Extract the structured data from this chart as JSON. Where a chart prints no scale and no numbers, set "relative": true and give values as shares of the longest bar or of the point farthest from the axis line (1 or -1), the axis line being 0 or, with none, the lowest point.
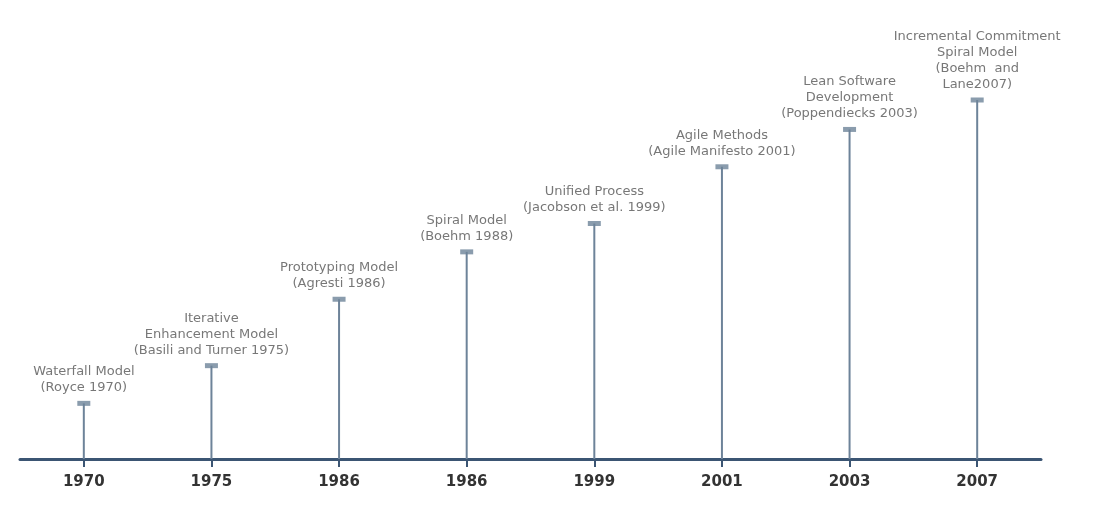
{
  "chart_data": {
    "type": "lollipop",
    "relative": true,
    "categories": [
      "1970",
      "1975",
      "1986",
      "1986",
      "1999",
      "2001",
      "2003",
      "2007"
    ],
    "values": [
      0.155,
      0.26,
      0.445,
      0.577,
      0.656,
      0.814,
      0.918,
      1
    ],
    "color": "#6d8399",
    "annotations": [
      "Waterfall Model\n(Royce 1970)",
      "Iterative\nEnhancement Model\n(Basili and Turner 1975)",
      "Prototyping Model\n(Agresti 1986)",
      "Spiral Model\n(Boehm 1988)",
      "Unified Process\n(Jacobson et al. 1999)",
      "Agile Methods\n(Agile Manifesto 2001)",
      "Lean Software\nDevelopment\n(Poppendiecks 2003)",
      "Incremental Commitment\nSpiral Model\n(Boehm  and\nLane2007)"
    ]
  }
}
